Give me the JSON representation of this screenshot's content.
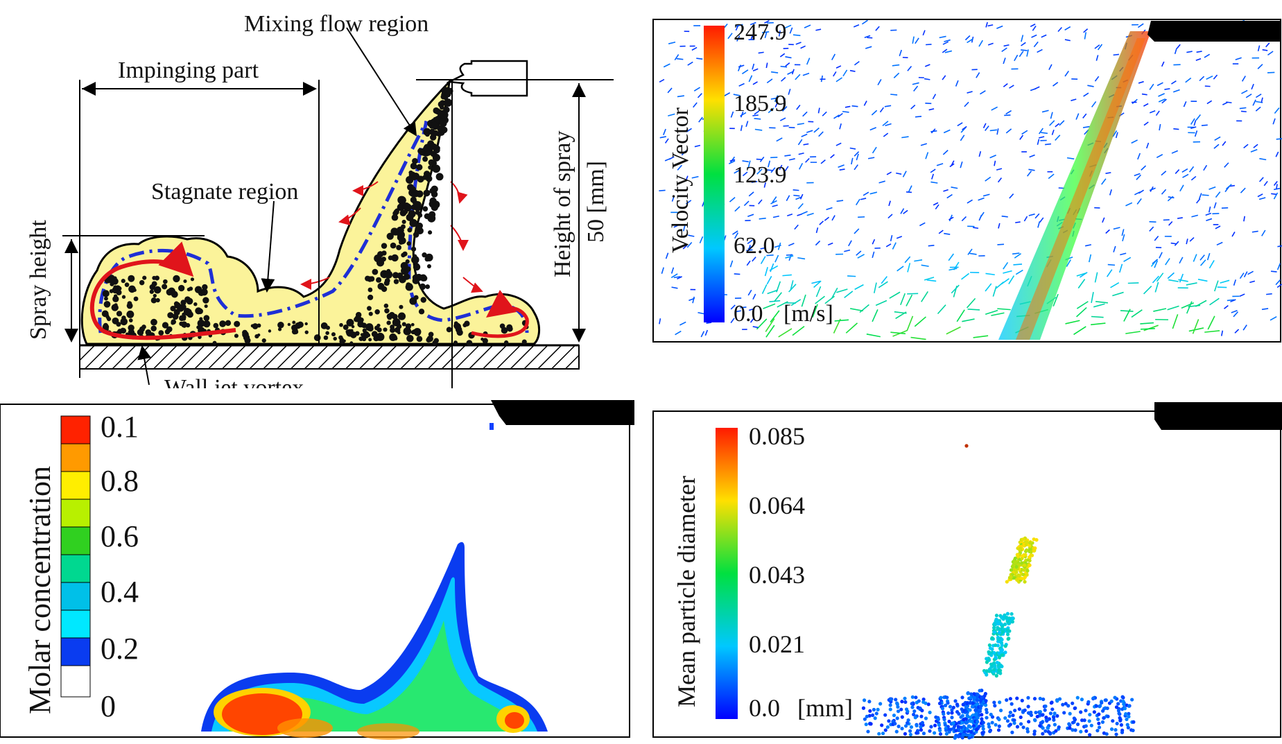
{
  "schematic": {
    "mixing_flow_region": "Mixing flow region",
    "impinging_part": "Impinging part",
    "stagnate_region": "Stagnate region",
    "spray_height": "Spray height",
    "height_of_spray": "Height of spray",
    "height_value": "50 [mm]",
    "wall_jet_vortex": "Wall jet vortex"
  },
  "velocity_panel": {
    "title": "Velocity Vector",
    "ticks": [
      "247.9",
      "185.9",
      "123.9",
      "62.0",
      "0.0"
    ],
    "unit": "[m/s]"
  },
  "molar_panel": {
    "title": "Molar concentration",
    "ticks": [
      "0.1",
      "0.8",
      "0.6",
      "0.4",
      "0.2",
      "0"
    ]
  },
  "diameter_panel": {
    "title": "Mean particle diameter",
    "ticks": [
      "0.085",
      "0.064",
      "0.043",
      "0.021",
      "0.0"
    ],
    "unit": "[mm]"
  },
  "colors": {
    "spray_fill": "#fbf39a",
    "arrow_red": "#e0141b",
    "dash_blue": "#1e2fd6",
    "nozzle_black": "#000000"
  }
}
